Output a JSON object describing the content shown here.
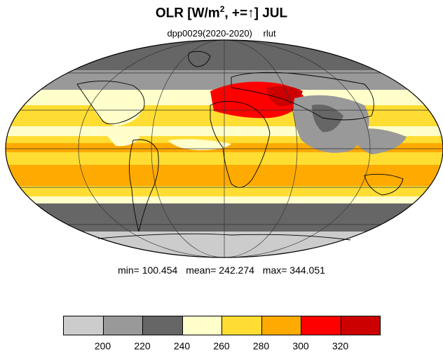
{
  "title": {
    "prefix": "OLR [W/m",
    "sup": "2",
    "suffix": ", +=↑] JUL"
  },
  "subtitle": {
    "left": "dpp0029(2020-2020)",
    "right": "rlut"
  },
  "stats": {
    "min": "min= 100.454",
    "mean": "mean= 242.274",
    "max": "max= 344.051"
  },
  "colorbar": {
    "colors": [
      "#cccccc",
      "#999999",
      "#666666",
      "#ffffcc",
      "#ffdd33",
      "#ffaa00",
      "#ff0000",
      "#cc0000"
    ],
    "tick_labels": [
      "200",
      "220",
      "240",
      "260",
      "280",
      "300",
      "320"
    ]
  },
  "map": {
    "projection": "mollweide",
    "variable": "rlut",
    "colors": {
      "lt200": "#cccccc",
      "200to220": "#999999",
      "220to240": "#666666",
      "240to260": "#ffffcc",
      "260to280": "#ffdd33",
      "280to300": "#ffaa00",
      "300to320": "#ff0000",
      "gt320": "#cc0000"
    }
  }
}
